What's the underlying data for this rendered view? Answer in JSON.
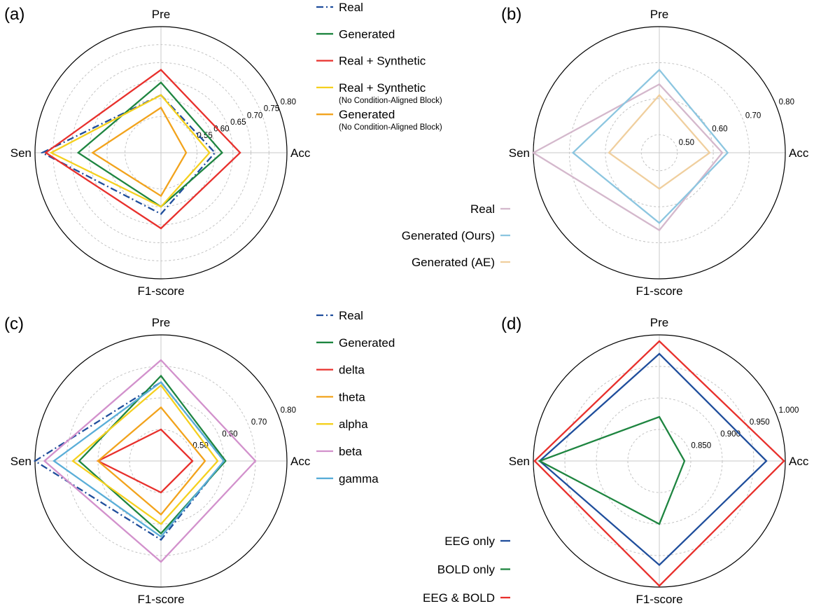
{
  "chart_data": [
    {
      "type": "radar",
      "panel": "(a)",
      "axes": [
        "Pre",
        "Acc",
        "F1-score",
        "Sen"
      ],
      "rlim": [
        0.45,
        0.8
      ],
      "tick_values": [
        0.55,
        0.6,
        0.65,
        0.7,
        0.75,
        0.8
      ],
      "tick_labels": [
        "0.55",
        "0.60",
        "0.65",
        "0.70",
        "0.75",
        "0.80"
      ],
      "grid": true,
      "legend_position": "right",
      "legend_labels_left": false,
      "series": [
        {
          "name": "Real",
          "color": "#1f4e9c",
          "dash": "dashdot",
          "values": [
            0.61,
            0.6,
            0.62,
            0.78
          ]
        },
        {
          "name": "Generated",
          "color": "#1e8540",
          "dash": "solid",
          "values": [
            0.645,
            0.62,
            0.6,
            0.68
          ]
        },
        {
          "name": "Real + Synthetic",
          "subtitle": "",
          "color": "#e8302c",
          "dash": "solid",
          "values": [
            0.68,
            0.67,
            0.66,
            0.77
          ]
        },
        {
          "name": "Real + Synthetic",
          "subtitle": "(No Condition-Aligned Block)",
          "color": "#f5d01e",
          "dash": "solid",
          "values": [
            0.61,
            0.585,
            0.6,
            0.755
          ]
        },
        {
          "name": "Generated",
          "subtitle": "(No Condition-Aligned Block)",
          "color": "#f2a31c",
          "dash": "solid",
          "values": [
            0.575,
            0.52,
            0.57,
            0.64
          ]
        }
      ]
    },
    {
      "type": "radar",
      "panel": "(b)",
      "axes": [
        "Pre",
        "Acc",
        "F1-score",
        "Sen"
      ],
      "rlim": [
        0.45,
        0.8
      ],
      "tick_values": [
        0.5,
        0.6,
        0.7,
        0.8
      ],
      "tick_labels": [
        "0.50",
        "0.60",
        "0.70",
        "0.80"
      ],
      "grid": true,
      "legend_position": "bottom-left",
      "legend_labels_left": true,
      "series": [
        {
          "name": "Real",
          "color": "#d4b8cc",
          "dash": "solid",
          "values": [
            0.64,
            0.625,
            0.665,
            0.8
          ]
        },
        {
          "name": "Generated (Ours)",
          "color": "#8cc6e0",
          "dash": "solid",
          "values": [
            0.68,
            0.64,
            0.645,
            0.69
          ]
        },
        {
          "name": "Generated (AE)",
          "color": "#f0cf9e",
          "dash": "solid",
          "values": [
            0.61,
            0.59,
            0.55,
            0.59
          ]
        }
      ]
    },
    {
      "type": "radar",
      "panel": "(c)",
      "axes": [
        "Pre",
        "Acc",
        "F1-score",
        "Sen"
      ],
      "rlim": [
        0.4,
        0.8
      ],
      "tick_values": [
        0.5,
        0.6,
        0.7,
        0.8
      ],
      "tick_labels": [
        "0.50",
        "0.60",
        "0.70",
        "0.80"
      ],
      "grid": true,
      "legend_position": "right",
      "legend_labels_left": false,
      "series": [
        {
          "name": "Real",
          "color": "#1f4e9c",
          "dash": "dashdot",
          "values": [
            0.65,
            0.6,
            0.65,
            0.8
          ]
        },
        {
          "name": "Generated",
          "color": "#1e8540",
          "dash": "solid",
          "values": [
            0.67,
            0.605,
            0.63,
            0.66
          ]
        },
        {
          "name": "delta",
          "color": "#e8302c",
          "dash": "solid",
          "values": [
            0.5,
            0.5,
            0.5,
            0.6
          ]
        },
        {
          "name": "theta",
          "color": "#f2a31c",
          "dash": "solid",
          "values": [
            0.57,
            0.54,
            0.57,
            0.6
          ]
        },
        {
          "name": "alpha",
          "color": "#f5d01e",
          "dash": "solid",
          "values": [
            0.64,
            0.58,
            0.6,
            0.68
          ]
        },
        {
          "name": "beta",
          "color": "#d291cc",
          "dash": "solid",
          "values": [
            0.72,
            0.7,
            0.72,
            0.77
          ]
        },
        {
          "name": "gamma",
          "color": "#5aaed8",
          "dash": "solid",
          "values": [
            0.65,
            0.6,
            0.64,
            0.74
          ]
        }
      ]
    },
    {
      "type": "radar",
      "panel": "(d)",
      "axes": [
        "Pre",
        "Acc",
        "F1-score",
        "Sen"
      ],
      "rlim": [
        0.8,
        1.0
      ],
      "tick_values": [
        0.85,
        0.9,
        0.95,
        1.0
      ],
      "tick_labels": [
        "0.850",
        "0.900",
        "0.950",
        "1.000"
      ],
      "grid": true,
      "legend_position": "bottom-left",
      "legend_labels_left": true,
      "series": [
        {
          "name": "EEG only",
          "color": "#1f4e9c",
          "dash": "solid",
          "values": [
            0.97,
            0.97,
            0.965,
            0.99
          ]
        },
        {
          "name": "BOLD only",
          "color": "#1e8540",
          "dash": "solid",
          "values": [
            0.87,
            0.84,
            0.9,
            0.99
          ]
        },
        {
          "name": "EEG & BOLD",
          "color": "#e8302c",
          "dash": "solid",
          "values": [
            0.99,
            0.998,
            0.998,
            0.998
          ]
        }
      ]
    }
  ]
}
